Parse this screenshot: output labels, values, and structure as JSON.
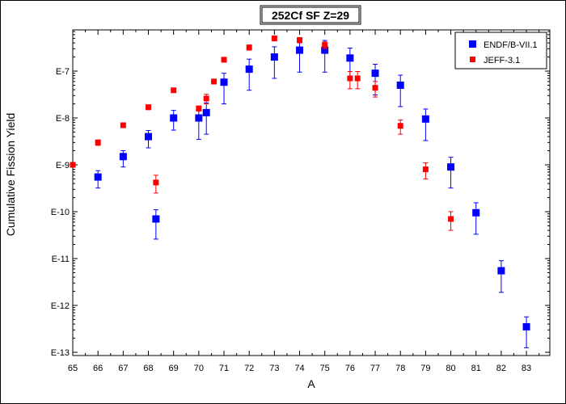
{
  "chart_data": {
    "type": "scatter",
    "title": "252Cf SF Z=29",
    "xlabel": "A",
    "ylabel": "Cumulative Fission Yield",
    "xlim": [
      65,
      84
    ],
    "ylim_exp": [
      -13,
      -6.2
    ],
    "yscale": "log",
    "x_ticks": [
      65,
      66,
      67,
      68,
      69,
      70,
      71,
      72,
      73,
      74,
      75,
      76,
      77,
      78,
      79,
      80,
      81,
      82,
      83
    ],
    "y_ticks": [
      {
        "exp": -7,
        "label": "E-7"
      },
      {
        "exp": -8,
        "label": "E-8"
      },
      {
        "exp": -9,
        "label": "E-9"
      },
      {
        "exp": -10,
        "label": "E-10"
      },
      {
        "exp": -11,
        "label": "E-11"
      },
      {
        "exp": -12,
        "label": "E-12"
      },
      {
        "exp": -13,
        "label": "E-13"
      }
    ],
    "legend_position": "top-right",
    "grid": false,
    "series": [
      {
        "name": "ENDF/B-VII.1",
        "color": "#0000ff",
        "marker": "square-large",
        "points": [
          {
            "x": 66,
            "y": 5.5e-10,
            "lo": 3.2e-10,
            "hi": 7.5e-10
          },
          {
            "x": 67,
            "y": 1.5e-09,
            "lo": 9e-10,
            "hi": 2e-09
          },
          {
            "x": 68,
            "y": 4e-09,
            "lo": 2.3e-09,
            "hi": 5.4e-09
          },
          {
            "x": 68.3,
            "y": 7e-11,
            "lo": 2.6e-11,
            "hi": 1.1e-10
          },
          {
            "x": 69,
            "y": 1e-08,
            "lo": 5.5e-09,
            "hi": 1.45e-08
          },
          {
            "x": 70,
            "y": 1e-08,
            "lo": 3.5e-09,
            "hi": 1.55e-08
          },
          {
            "x": 70.3,
            "y": 1.3e-08,
            "lo": 4.5e-09,
            "hi": 2.1e-08
          },
          {
            "x": 71,
            "y": 5.8e-08,
            "lo": 2e-08,
            "hi": 9e-08
          },
          {
            "x": 72,
            "y": 1.1e-07,
            "lo": 3.9e-08,
            "hi": 1.8e-07
          },
          {
            "x": 73,
            "y": 2e-07,
            "lo": 7e-08,
            "hi": 3.3e-07
          },
          {
            "x": 74,
            "y": 2.8e-07,
            "lo": 9.5e-08,
            "hi": 4.5e-07
          },
          {
            "x": 75,
            "y": 2.8e-07,
            "lo": 9.5e-08,
            "hi": 4.5e-07
          },
          {
            "x": 76,
            "y": 1.9e-07,
            "lo": 6.5e-08,
            "hi": 3.1e-07
          },
          {
            "x": 77,
            "y": 9e-08,
            "lo": 3.1e-08,
            "hi": 1.4e-07
          },
          {
            "x": 78,
            "y": 5e-08,
            "lo": 1.75e-08,
            "hi": 8.2e-08
          },
          {
            "x": 79,
            "y": 9.5e-09,
            "lo": 3.3e-09,
            "hi": 1.55e-08
          },
          {
            "x": 80,
            "y": 9e-10,
            "lo": 3.2e-10,
            "hi": 1.45e-09
          },
          {
            "x": 81,
            "y": 9.5e-11,
            "lo": 3.3e-11,
            "hi": 1.55e-10
          },
          {
            "x": 82,
            "y": 5.5e-12,
            "lo": 1.9e-12,
            "hi": 9e-12
          },
          {
            "x": 83,
            "y": 3.5e-13,
            "lo": 1.25e-13,
            "hi": 5.7e-13
          }
        ]
      },
      {
        "name": "JEFF-3.1",
        "color": "#ff0000",
        "marker": "square-small",
        "points": [
          {
            "x": 65,
            "y": 1e-09,
            "lo": 9e-10,
            "hi": 1.1e-09
          },
          {
            "x": 66,
            "y": 3e-09,
            "lo": 2.6e-09,
            "hi": 3.4e-09
          },
          {
            "x": 67,
            "y": 7e-09,
            "lo": 6.2e-09,
            "hi": 7.8e-09
          },
          {
            "x": 68,
            "y": 1.7e-08,
            "lo": 1.5e-08,
            "hi": 1.9e-08
          },
          {
            "x": 68.3,
            "y": 4.2e-10,
            "lo": 2.5e-10,
            "hi": 6e-10
          },
          {
            "x": 69,
            "y": 3.9e-08,
            "lo": 3.5e-08,
            "hi": 4.3e-08
          },
          {
            "x": 70,
            "y": 1.6e-08,
            "lo": 1.4e-08,
            "hi": 1.8e-08
          },
          {
            "x": 70.3,
            "y": 2.6e-08,
            "lo": 2e-08,
            "hi": 3.2e-08
          },
          {
            "x": 70.6,
            "y": 6e-08,
            "lo": 5.3e-08,
            "hi": 6.7e-08
          },
          {
            "x": 71,
            "y": 1.75e-07,
            "lo": 1.55e-07,
            "hi": 1.95e-07
          },
          {
            "x": 72,
            "y": 3.2e-07,
            "lo": 2.8e-07,
            "hi": 3.6e-07
          },
          {
            "x": 73,
            "y": 5e-07,
            "lo": 4.4e-07,
            "hi": 5.6e-07
          },
          {
            "x": 74,
            "y": 4.6e-07,
            "lo": 4e-07,
            "hi": 5.2e-07
          },
          {
            "x": 75,
            "y": 3.6e-07,
            "lo": 3e-07,
            "hi": 4.2e-07
          },
          {
            "x": 76,
            "y": 7e-08,
            "lo": 4.2e-08,
            "hi": 9.8e-08
          },
          {
            "x": 76.3,
            "y": 7e-08,
            "lo": 4.2e-08,
            "hi": 9.8e-08
          },
          {
            "x": 77,
            "y": 4.4e-08,
            "lo": 2.8e-08,
            "hi": 6e-08
          },
          {
            "x": 78,
            "y": 6.8e-09,
            "lo": 4.5e-09,
            "hi": 9e-09
          },
          {
            "x": 79,
            "y": 8e-10,
            "lo": 5e-10,
            "hi": 1.1e-09
          },
          {
            "x": 80,
            "y": 7e-11,
            "lo": 4e-11,
            "hi": 1e-10
          }
        ]
      }
    ]
  }
}
